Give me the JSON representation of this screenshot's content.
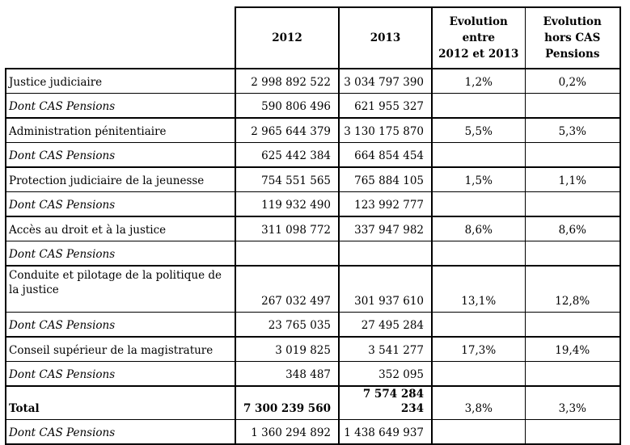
{
  "table": {
    "columns": [
      {
        "label": ""
      },
      {
        "label": "2012"
      },
      {
        "label": "2013"
      },
      {
        "label": "Evolution\nentre\n2012 et 2013"
      },
      {
        "label": "Evolution\nhors CAS\nPensions"
      }
    ],
    "rows": [
      {
        "label": "Justice judiciaire",
        "y2012": "2 998 892 522",
        "y2013": "3 034 797 390",
        "evolution": "1,2%",
        "evolution_hors_cas": "0,2%"
      },
      {
        "label": "Dont CAS Pensions",
        "y2012": "590 806 496",
        "y2013": "621 955 327",
        "evolution": "",
        "evolution_hors_cas": ""
      },
      {
        "label": "Administration pénitentiaire",
        "y2012": "2 965 644 379",
        "y2013": "3 130 175 870",
        "evolution": "5,5%",
        "evolution_hors_cas": "5,3%"
      },
      {
        "label": "Dont CAS Pensions",
        "y2012": "625 442 384",
        "y2013": "664 854 454",
        "evolution": "",
        "evolution_hors_cas": ""
      },
      {
        "label": "Protection judiciaire de la jeunesse",
        "y2012": "754 551 565",
        "y2013": "765 884 105",
        "evolution": "1,5%",
        "evolution_hors_cas": "1,1%"
      },
      {
        "label": "Dont CAS Pensions",
        "y2012": "119 932 490",
        "y2013": "123 992 777",
        "evolution": "",
        "evolution_hors_cas": ""
      },
      {
        "label": "Accès au droit et à la justice",
        "y2012": "311 098 772",
        "y2013": "337 947 982",
        "evolution": "8,6%",
        "evolution_hors_cas": "8,6%"
      },
      {
        "label": "Dont CAS Pensions",
        "y2012": "",
        "y2013": "",
        "evolution": "",
        "evolution_hors_cas": ""
      },
      {
        "label": "Conduite et pilotage de la politique de la justice",
        "y2012": "267 032 497",
        "y2013": "301 937 610",
        "evolution": "13,1%",
        "evolution_hors_cas": "12,8%"
      },
      {
        "label": "Dont CAS Pensions",
        "y2012": "23 765 035",
        "y2013": "27 495 284",
        "evolution": "",
        "evolution_hors_cas": ""
      },
      {
        "label": "Conseil supérieur de la magistrature",
        "y2012": "3 019 825",
        "y2013": "3 541 277",
        "evolution": "17,3%",
        "evolution_hors_cas": "19,4%"
      },
      {
        "label": "Dont CAS Pensions",
        "y2012": "348 487",
        "y2013": "352 095",
        "evolution": "",
        "evolution_hors_cas": ""
      },
      {
        "label": "Total",
        "y2012": "7 300 239 560",
        "y2013": "7 574 284 234",
        "evolution": "3,8%",
        "evolution_hors_cas": "3,3%"
      },
      {
        "label": "Dont CAS Pensions",
        "y2012": "1 360 294 892",
        "y2013": "1 438 649 937",
        "evolution": "",
        "evolution_hors_cas": ""
      }
    ],
    "colors": {
      "border": "#000000",
      "text": "#000000",
      "background": "#ffffff"
    }
  }
}
